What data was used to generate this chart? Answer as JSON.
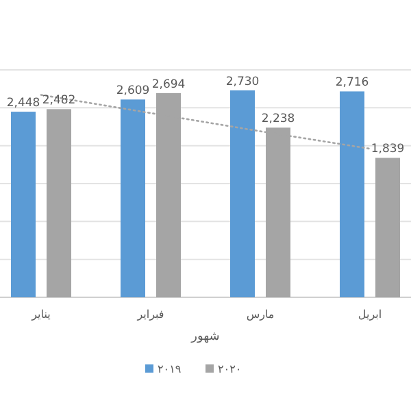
{
  "chart_data": {
    "type": "bar",
    "xlabel": "شهور",
    "categories": [
      "يناير",
      "فبراير",
      "مارس",
      "ابريل"
    ],
    "series": [
      {
        "name": "٢٠١٩",
        "color": "#5b9bd5",
        "values": [
          2448,
          2609,
          2730,
          2716
        ],
        "value_labels": [
          "2,448",
          "2,609",
          "2,730",
          "2,716"
        ]
      },
      {
        "name": "٢٠٢٠",
        "color": "#a5a5a5",
        "values": [
          2482,
          2694,
          2238,
          1839
        ],
        "value_labels": [
          "2,482",
          "2,694",
          "2,238",
          "1,839"
        ]
      },
      {
        "type": "line",
        "color": "#a5a5a5",
        "line_style": "dotted",
        "values": [
          2670,
          2430,
          2190,
          1960
        ]
      }
    ],
    "ylim": [
      0,
      3000
    ],
    "yticks": [
      {
        "value": 0,
        "label": null
      },
      {
        "value": 500,
        "label": null
      },
      {
        "value": 1000,
        "label": null
      },
      {
        "value": 1500,
        "label": null
      },
      {
        "value": 2000,
        "label": null
      },
      {
        "value": 2500,
        "label": null
      },
      {
        "value": 3000,
        "label": null
      }
    ],
    "grid": "y",
    "legend": "bottom",
    "tick_labels": "x",
    "marker": "none"
  }
}
